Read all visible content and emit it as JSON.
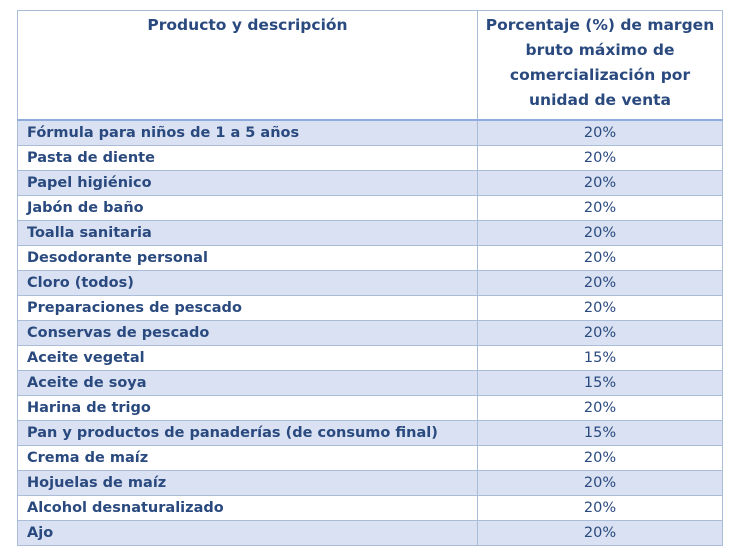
{
  "table": {
    "headers": {
      "product": "Producto y descripción",
      "percentage": "Porcentaje (%) de margen bruto máximo de comercialización por unidad de venta"
    },
    "rows": [
      {
        "product": "Fórmula para niños de 1 a 5 años",
        "percentage": "20%"
      },
      {
        "product": "Pasta de diente",
        "percentage": "20%"
      },
      {
        "product": "Papel higiénico",
        "percentage": "20%"
      },
      {
        "product": "Jabón de baño",
        "percentage": "20%"
      },
      {
        "product": "Toalla sanitaria",
        "percentage": "20%"
      },
      {
        "product": "Desodorante personal",
        "percentage": "20%"
      },
      {
        "product": "Cloro (todos)",
        "percentage": "20%"
      },
      {
        "product": "Preparaciones de pescado",
        "percentage": "20%"
      },
      {
        "product": "Conservas de pescado",
        "percentage": "20%"
      },
      {
        "product": "Aceite vegetal",
        "percentage": "15%"
      },
      {
        "product": "Aceite de soya",
        "percentage": "15%"
      },
      {
        "product": "Harina de trigo",
        "percentage": "20%"
      },
      {
        "product": "Pan y productos de panaderías (de consumo final)",
        "percentage": "15%"
      },
      {
        "product": "Crema de maíz",
        "percentage": "20%"
      },
      {
        "product": "Hojuelas de maíz",
        "percentage": "20%"
      },
      {
        "product": "Alcohol desnaturalizado",
        "percentage": "20%"
      },
      {
        "product": "Ajo",
        "percentage": "20%"
      }
    ]
  },
  "colors": {
    "text": "#2a4a7f",
    "row_shade": "#d9e1f2",
    "border": "#a9bcd8"
  }
}
